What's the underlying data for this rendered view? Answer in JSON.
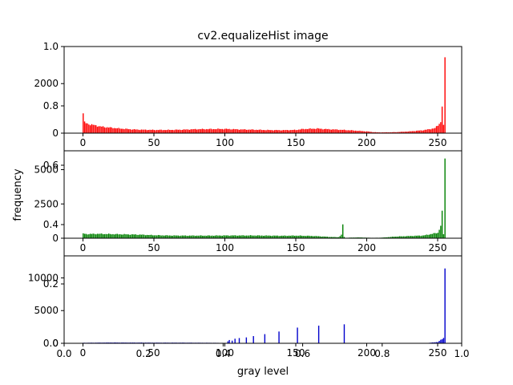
{
  "chart_data": {
    "type": "bar",
    "title": "cv2.equalizeHist image",
    "xlabel": "gray level",
    "ylabel": "frequency",
    "background_axes": {
      "x_ticks": [
        "0.0",
        "0.2",
        "0.4",
        "0.6",
        "0.8",
        "1.0"
      ],
      "y_ticks": [
        "0.0",
        "0.2",
        "0.4",
        "0.6",
        "0.8",
        "1.0"
      ]
    },
    "panels": [
      {
        "name": "red",
        "color": "#ff0000",
        "x_ticks": [
          0,
          50,
          100,
          150,
          200,
          250
        ],
        "y_ticks": [
          0,
          2000
        ],
        "ylim": [
          0,
          3400
        ],
        "anchors": [
          [
            0,
            800
          ],
          [
            1,
            430
          ],
          [
            3,
            380
          ],
          [
            5,
            350
          ],
          [
            8,
            320
          ],
          [
            12,
            270
          ],
          [
            16,
            240
          ],
          [
            20,
            220
          ],
          [
            25,
            190
          ],
          [
            30,
            170
          ],
          [
            35,
            150
          ],
          [
            40,
            140
          ],
          [
            50,
            130
          ],
          [
            60,
            130
          ],
          [
            70,
            140
          ],
          [
            80,
            160
          ],
          [
            90,
            165
          ],
          [
            100,
            170
          ],
          [
            110,
            150
          ],
          [
            120,
            140
          ],
          [
            130,
            125
          ],
          [
            140,
            120
          ],
          [
            150,
            130
          ],
          [
            155,
            165
          ],
          [
            160,
            175
          ],
          [
            165,
            185
          ],
          [
            170,
            165
          ],
          [
            180,
            140
          ],
          [
            190,
            110
          ],
          [
            200,
            70
          ],
          [
            205,
            40
          ],
          [
            210,
            30
          ],
          [
            220,
            40
          ],
          [
            230,
            70
          ],
          [
            240,
            120
          ],
          [
            248,
            200
          ],
          [
            252,
            450
          ],
          [
            253,
            1100
          ],
          [
            254,
            300
          ],
          [
            255,
            3050
          ]
        ]
      },
      {
        "name": "green",
        "color": "#008000",
        "x_ticks": [
          0,
          50,
          100,
          150,
          200,
          250
        ],
        "y_ticks": [
          0,
          2500,
          5000
        ],
        "ylim": [
          0,
          6200
        ],
        "anchors": [
          [
            0,
            340
          ],
          [
            2,
            300
          ],
          [
            10,
            320
          ],
          [
            20,
            300
          ],
          [
            30,
            280
          ],
          [
            40,
            260
          ],
          [
            50,
            220
          ],
          [
            60,
            200
          ],
          [
            70,
            190
          ],
          [
            80,
            190
          ],
          [
            90,
            190
          ],
          [
            100,
            200
          ],
          [
            110,
            200
          ],
          [
            120,
            200
          ],
          [
            130,
            190
          ],
          [
            140,
            180
          ],
          [
            150,
            190
          ],
          [
            160,
            170
          ],
          [
            165,
            150
          ],
          [
            170,
            120
          ],
          [
            175,
            90
          ],
          [
            180,
            80
          ],
          [
            181,
            160
          ],
          [
            182,
            250
          ],
          [
            183,
            920
          ],
          [
            184,
            100
          ],
          [
            185,
            30
          ],
          [
            190,
            50
          ],
          [
            195,
            60
          ],
          [
            200,
            40
          ],
          [
            205,
            30
          ],
          [
            210,
            40
          ],
          [
            220,
            120
          ],
          [
            230,
            160
          ],
          [
            240,
            200
          ],
          [
            250,
            400
          ],
          [
            252,
            900
          ],
          [
            253,
            1800
          ],
          [
            254,
            300
          ],
          [
            255,
            5900
          ]
        ]
      },
      {
        "name": "blue",
        "color": "#0000cc",
        "x_ticks": [
          0,
          50,
          100,
          150,
          200,
          250
        ],
        "y_ticks": [
          0,
          5000,
          10000
        ],
        "ylim": [
          0,
          13000
        ],
        "anchors": [
          [
            0,
            80
          ],
          [
            10,
            100
          ],
          [
            20,
            120
          ],
          [
            30,
            110
          ],
          [
            40,
            110
          ],
          [
            50,
            100
          ],
          [
            60,
            100
          ],
          [
            70,
            100
          ],
          [
            80,
            90
          ],
          [
            90,
            80
          ],
          [
            100,
            60
          ],
          [
            110,
            40
          ],
          [
            140,
            30
          ],
          [
            200,
            0
          ],
          [
            240,
            0
          ],
          [
            250,
            200
          ],
          [
            252,
            500
          ],
          [
            254,
            800
          ],
          [
            255,
            12400
          ]
        ],
        "spikes": [
          [
            102,
            300
          ],
          [
            103,
            500
          ],
          [
            105,
            400
          ],
          [
            107,
            700
          ],
          [
            110,
            800
          ],
          [
            115,
            900
          ],
          [
            120,
            1100
          ],
          [
            128,
            1400
          ],
          [
            138,
            1800
          ],
          [
            151,
            2400
          ],
          [
            166,
            2700
          ],
          [
            184,
            2900
          ]
        ]
      }
    ]
  }
}
